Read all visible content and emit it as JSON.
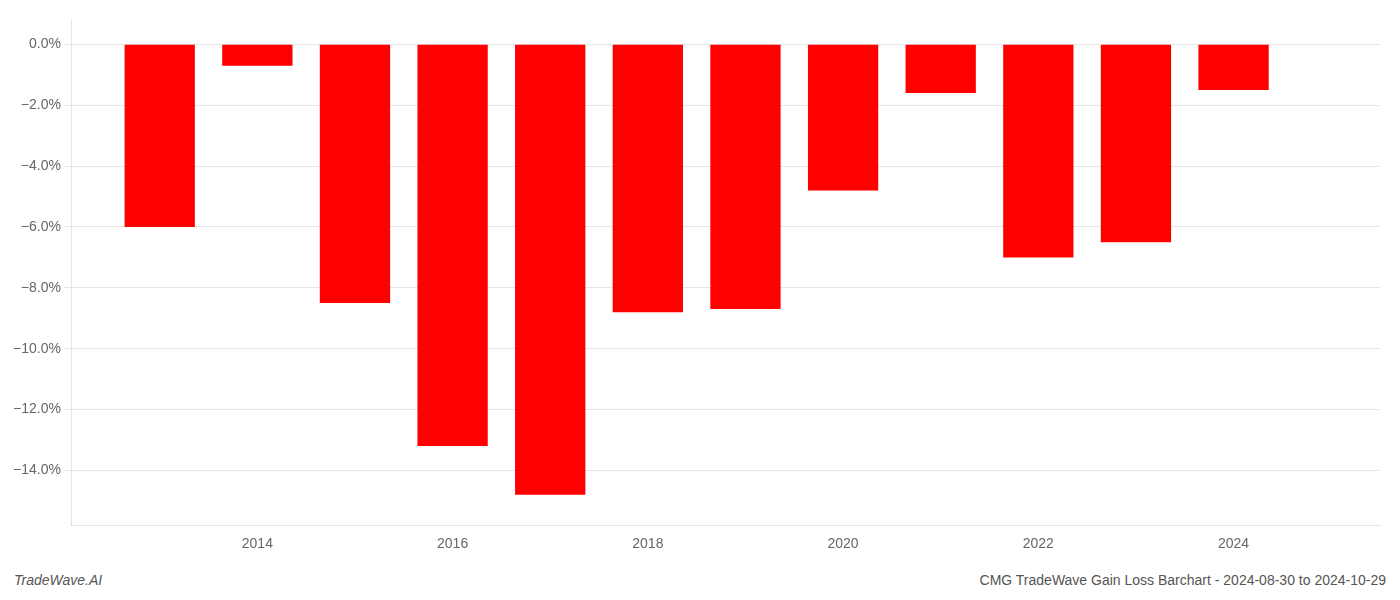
{
  "chart_data": {
    "type": "bar",
    "x": [
      2013,
      2014,
      2015,
      2016,
      2017,
      2018,
      2019,
      2020,
      2021,
      2022,
      2023,
      2024
    ],
    "values": [
      -0.06,
      -0.007,
      -0.085,
      -0.132,
      -0.148,
      -0.088,
      -0.087,
      -0.048,
      -0.016,
      -0.07,
      -0.065,
      -0.015
    ],
    "color": "#ff0000",
    "xlim": [
      2012.1,
      2025.5
    ],
    "xticks": [
      2014,
      2016,
      2018,
      2020,
      2022,
      2024
    ],
    "ylim": [
      -0.158,
      0.008
    ],
    "yticks": [
      {
        "value": 0.0,
        "label": "0.0%"
      },
      {
        "value": -0.02,
        "label": "−2.0%"
      },
      {
        "value": -0.04,
        "label": "−4.0%"
      },
      {
        "value": -0.06,
        "label": "−6.0%"
      },
      {
        "value": -0.08,
        "label": "−8.0%"
      },
      {
        "value": -0.1,
        "label": "−10.0%"
      },
      {
        "value": -0.12,
        "label": "−12.0%"
      },
      {
        "value": -0.14,
        "label": "−14.0%"
      }
    ],
    "grid": true,
    "annotations": [
      "TradeWave.AI",
      "CMG TradeWave Gain Loss Barchart - 2024-08-30 to 2024-10-29"
    ]
  }
}
